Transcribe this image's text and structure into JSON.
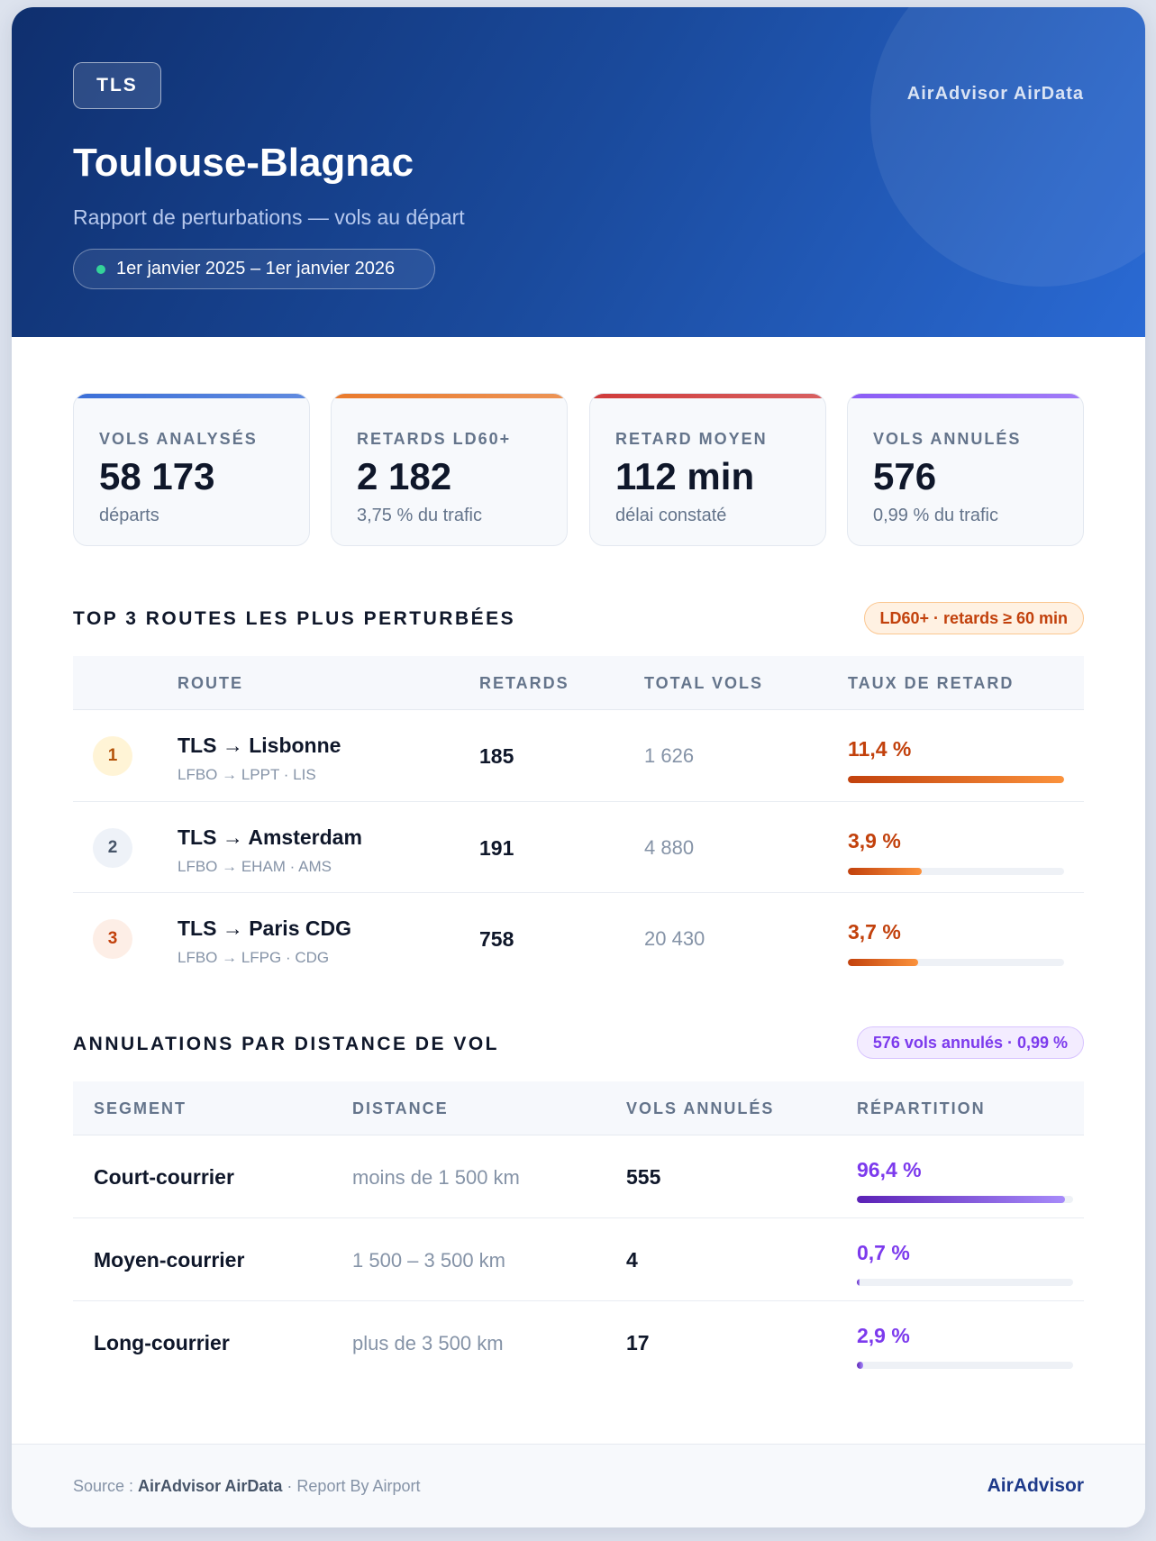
{
  "header": {
    "code": "TLS",
    "brand": "AirAdvisor AirData",
    "title": "Toulouse-Blagnac",
    "subtitle": "Rapport de perturbations — vols au départ",
    "period": "1er janvier 2025 – 1er janvier 2026"
  },
  "kpis": [
    {
      "label": "VOLS ANALYSÉS",
      "value": "58 173",
      "sub": "départs",
      "color": "#3b6fd8"
    },
    {
      "label": "RETARDS LD60+",
      "value": "2 182",
      "sub": "3,75 % du trafic",
      "color": "#ea7a2c"
    },
    {
      "label": "RETARD MOYEN",
      "value": "112 min",
      "sub": "délai constaté",
      "color": "#d03a3a"
    },
    {
      "label": "VOLS ANNULÉS",
      "value": "576",
      "sub": "0,99 % du trafic",
      "color": "#8b5cf6"
    }
  ],
  "routes": {
    "title": "TOP 3 ROUTES LES PLUS PERTURBÉES",
    "badge": "LD60+ · retards ≥ 60 min",
    "columns": [
      "ROUTE",
      "RETARDS",
      "TOTAL VOLS",
      "TAUX DE RETARD"
    ],
    "rows": [
      {
        "rank": "1",
        "name": "TLS → Lisbonne",
        "codes": "LFBO → LPPT · LIS",
        "delays": "185",
        "total": "1 626",
        "rate": "11,4 %",
        "level": 11.4
      },
      {
        "rank": "2",
        "name": "TLS → Amsterdam",
        "codes": "LFBO → EHAM · AMS",
        "delays": "191",
        "total": "4 880",
        "rate": "3,9 %",
        "level": 3.9
      },
      {
        "rank": "3",
        "name": "TLS → Paris CDG",
        "codes": "LFBO → LFPG · CDG",
        "delays": "758",
        "total": "20 430",
        "rate": "3,7 %",
        "level": 3.7
      }
    ]
  },
  "cancellations": {
    "title": "ANNULATIONS PAR DISTANCE DE VOL",
    "badge": "576 vols annulés · 0,99 %",
    "columns": [
      "SEGMENT",
      "DISTANCE",
      "VOLS ANNULÉS",
      "RÉPARTITION"
    ],
    "rows": [
      {
        "segment": "Court-courrier",
        "distance": "moins de 1 500 km",
        "count": "555",
        "share": "96,4 %",
        "level": 96.4
      },
      {
        "segment": "Moyen-courrier",
        "distance": "1 500 – 3 500 km",
        "count": "4",
        "share": "0,7 %",
        "level": 0.7
      },
      {
        "segment": "Long-courrier",
        "distance": "plus de 3 500 km",
        "count": "17",
        "share": "2,9 %",
        "level": 2.9
      }
    ]
  },
  "footer": {
    "source_prefix": "Source : ",
    "source_name": "AirAdvisor AirData",
    "source_suffix": " · Report By Airport",
    "brand": "AirAdvisor"
  }
}
